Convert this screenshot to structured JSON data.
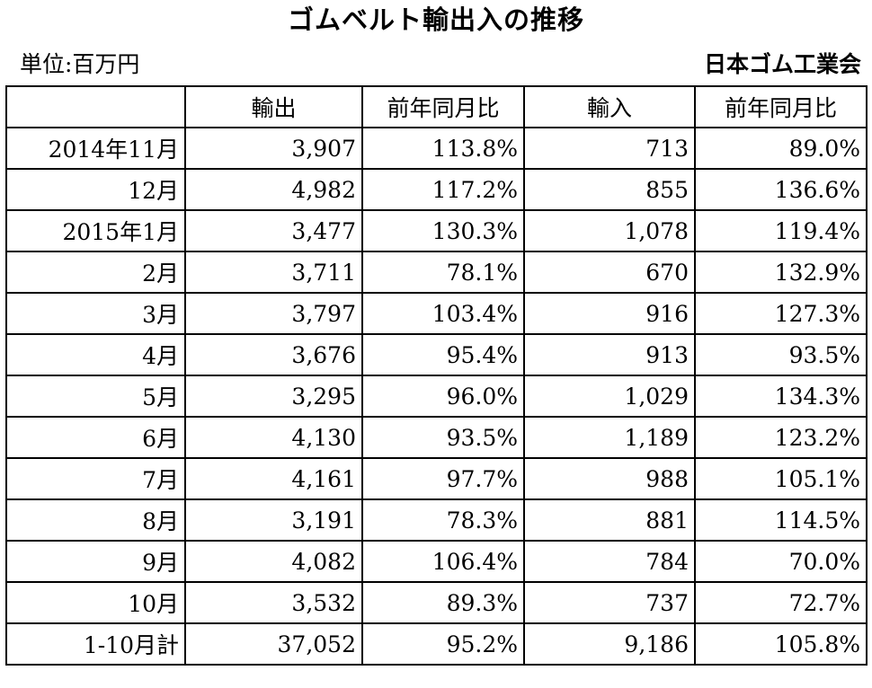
{
  "title": "ゴムベルト輸出入の推移",
  "unit": "単位:百万円",
  "source": "日本ゴム工業会",
  "table": {
    "headers": [
      "",
      "輸出",
      "前年同月比",
      "輸入",
      "前年同月比"
    ],
    "rows": [
      [
        "2014年11月",
        "3,907",
        "113.8%",
        "713",
        "89.0%"
      ],
      [
        "12月",
        "4,982",
        "117.2%",
        "855",
        "136.6%"
      ],
      [
        "2015年1月",
        "3,477",
        "130.3%",
        "1,078",
        "119.4%"
      ],
      [
        "2月",
        "3,711",
        "78.1%",
        "670",
        "132.9%"
      ],
      [
        "3月",
        "3,797",
        "103.4%",
        "916",
        "127.3%"
      ],
      [
        "4月",
        "3,676",
        "95.4%",
        "913",
        "93.5%"
      ],
      [
        "5月",
        "3,295",
        "96.0%",
        "1,029",
        "134.3%"
      ],
      [
        "6月",
        "4,130",
        "93.5%",
        "1,189",
        "123.2%"
      ],
      [
        "7月",
        "4,161",
        "97.7%",
        "988",
        "105.1%"
      ],
      [
        "8月",
        "3,191",
        "78.3%",
        "881",
        "114.5%"
      ],
      [
        "9月",
        "4,082",
        "106.4%",
        "784",
        "70.0%"
      ],
      [
        "10月",
        "3,532",
        "89.3%",
        "737",
        "72.7%"
      ],
      [
        "1-10月計",
        "37,052",
        "95.2%",
        "9,186",
        "105.8%"
      ]
    ]
  }
}
